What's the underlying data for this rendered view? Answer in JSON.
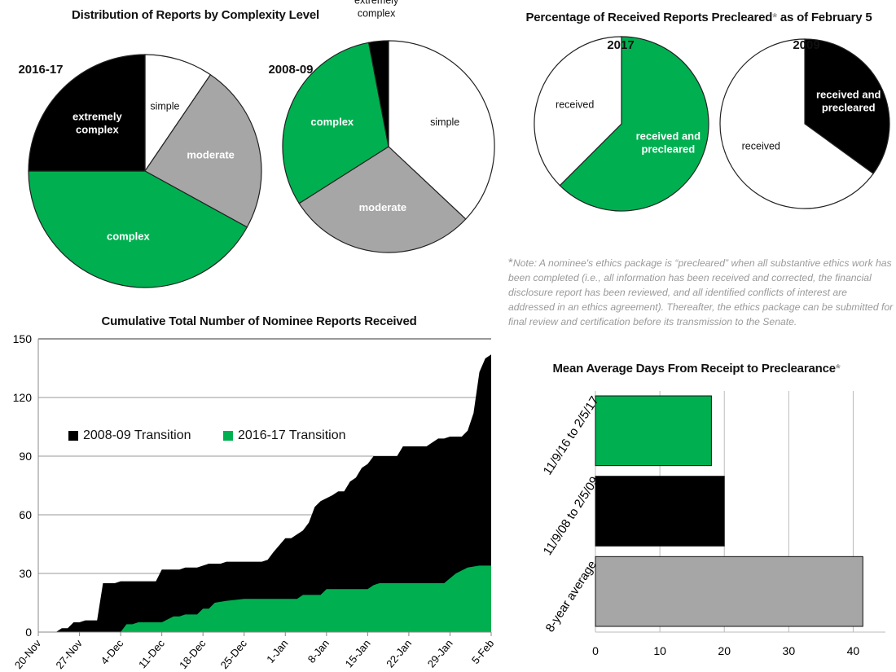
{
  "chart_data": [
    {
      "type": "pie",
      "title": "Distribution of Reports by Complexity Level",
      "subtitle": "2016-17",
      "slices": [
        {
          "label": "simple",
          "value": 9.5,
          "color": "#ffffff"
        },
        {
          "label": "moderate",
          "value": 23.5,
          "color": "#a6a6a6"
        },
        {
          "label": "complex",
          "value": 42,
          "color": "#00b050"
        },
        {
          "label": "extremely complex",
          "value": 25,
          "color": "#000000"
        }
      ]
    },
    {
      "type": "pie",
      "subtitle": "2008-09",
      "slices": [
        {
          "label": "simple",
          "value": 37,
          "color": "#ffffff"
        },
        {
          "label": "moderate",
          "value": 29,
          "color": "#a6a6a6"
        },
        {
          "label": "complex",
          "value": 31,
          "color": "#00b050"
        },
        {
          "label": "extremely complex",
          "value": 3,
          "color": "#000000"
        }
      ]
    },
    {
      "type": "pie",
      "title": "Percentage of Received Reports Precleared",
      "title_suffix": "as of February 5",
      "subtitle": "2017",
      "slices": [
        {
          "label": "received and precleared",
          "value": 62.5,
          "color": "#00b050"
        },
        {
          "label": "received",
          "value": 37.5,
          "color": "#ffffff"
        }
      ]
    },
    {
      "type": "pie",
      "subtitle": "2009",
      "slices": [
        {
          "label": "received and precleared",
          "value": 35,
          "color": "#000000"
        },
        {
          "label": "received",
          "value": 65,
          "color": "#ffffff"
        }
      ]
    },
    {
      "type": "area",
      "title": "Cumulative Total Number of Nominee Reports Received",
      "ylim": [
        0,
        150
      ],
      "yticks": [
        0,
        30,
        60,
        90,
        120,
        150
      ],
      "xticks": [
        "20-Nov",
        "27-Nov",
        "4-Dec",
        "11-Dec",
        "18-Dec",
        "25-Dec",
        "1-Jan",
        "8-Jan",
        "15-Jan",
        "22-Jan",
        "29-Jan",
        "5-Feb"
      ],
      "xrange": [
        "20-Nov",
        "5-Feb"
      ],
      "grid": true,
      "legend_position": "upper-left",
      "series": [
        {
          "name": "2008-09 Transition",
          "color": "#000000",
          "points": [
            [
              "23-Nov",
              0
            ],
            [
              "24-Nov",
              2
            ],
            [
              "25-Nov",
              2
            ],
            [
              "26-Nov",
              5
            ],
            [
              "27-Nov",
              5
            ],
            [
              "28-Nov",
              6
            ],
            [
              "30-Nov",
              6
            ],
            [
              "1-Dec",
              25
            ],
            [
              "3-Dec",
              25
            ],
            [
              "4-Dec",
              26
            ],
            [
              "10-Dec",
              26
            ],
            [
              "11-Dec",
              32
            ],
            [
              "14-Dec",
              32
            ],
            [
              "15-Dec",
              33
            ],
            [
              "17-Dec",
              33
            ],
            [
              "19-Dec",
              35
            ],
            [
              "21-Dec",
              35
            ],
            [
              "22-Dec",
              36
            ],
            [
              "28-Dec",
              36
            ],
            [
              "29-Dec",
              37
            ],
            [
              "30-Dec",
              41
            ],
            [
              "1-Jan",
              48
            ],
            [
              "2-Jan",
              48
            ],
            [
              "4-Jan",
              52
            ],
            [
              "5-Jan",
              56
            ],
            [
              "6-Jan",
              64
            ],
            [
              "7-Jan",
              67
            ],
            [
              "9-Jan",
              70
            ],
            [
              "10-Jan",
              72
            ],
            [
              "11-Jan",
              72
            ],
            [
              "12-Jan",
              77
            ],
            [
              "13-Jan",
              79
            ],
            [
              "14-Jan",
              84
            ],
            [
              "15-Jan",
              86
            ],
            [
              "16-Jan",
              90
            ],
            [
              "20-Jan",
              90
            ],
            [
              "21-Jan",
              95
            ],
            [
              "25-Jan",
              95
            ],
            [
              "27-Jan",
              99
            ],
            [
              "28-Jan",
              99
            ],
            [
              "29-Jan",
              100
            ],
            [
              "31-Jan",
              100
            ],
            [
              "1-Feb",
              103
            ],
            [
              "2-Feb",
              112
            ],
            [
              "3-Feb",
              133
            ],
            [
              "4-Feb",
              140
            ],
            [
              "5-Feb",
              142
            ]
          ]
        },
        {
          "name": "2016-17 Transition",
          "color": "#00b050",
          "points": [
            [
              "4-Dec",
              0
            ],
            [
              "5-Dec",
              4
            ],
            [
              "6-Dec",
              4
            ],
            [
              "7-Dec",
              5
            ],
            [
              "11-Dec",
              5
            ],
            [
              "13-Dec",
              8
            ],
            [
              "14-Dec",
              8
            ],
            [
              "15-Dec",
              9
            ],
            [
              "17-Dec",
              9
            ],
            [
              "18-Dec",
              12
            ],
            [
              "19-Dec",
              12
            ],
            [
              "20-Dec",
              15
            ],
            [
              "22-Dec",
              16
            ],
            [
              "25-Dec",
              17
            ],
            [
              "3-Jan",
              17
            ],
            [
              "4-Jan",
              19
            ],
            [
              "7-Jan",
              19
            ],
            [
              "8-Jan",
              22
            ],
            [
              "15-Jan",
              22
            ],
            [
              "16-Jan",
              24
            ],
            [
              "17-Jan",
              25
            ],
            [
              "28-Jan",
              25
            ],
            [
              "30-Jan",
              30
            ],
            [
              "1-Feb",
              33
            ],
            [
              "3-Feb",
              34
            ],
            [
              "5-Feb",
              34
            ]
          ]
        }
      ]
    },
    {
      "type": "bar",
      "orientation": "horizontal",
      "title": "Mean Average Days From Receipt to Preclearance",
      "categories": [
        "11/9/16 to 2/5/17",
        "11/9/08 to 2/5/09",
        "8-year average"
      ],
      "values": [
        18,
        20,
        41.5
      ],
      "colors": [
        "#00b050",
        "#000000",
        "#a6a6a6"
      ],
      "xlim": [
        0,
        45
      ],
      "xticks": [
        0,
        10,
        20,
        30,
        40
      ],
      "grid": true
    }
  ],
  "note": {
    "asterisk": "*",
    "text": "Note: A nominee's ethics package is “precleared” when all substantive ethics work has been completed (i.e., all information has been received and corrected, the financial disclosure report has been reviewed, and all identified conflicts of interest are addressed in an ethics agreement). Thereafter, the ethics package can be submitted  for final review and certification before its transmission to the Senate."
  }
}
